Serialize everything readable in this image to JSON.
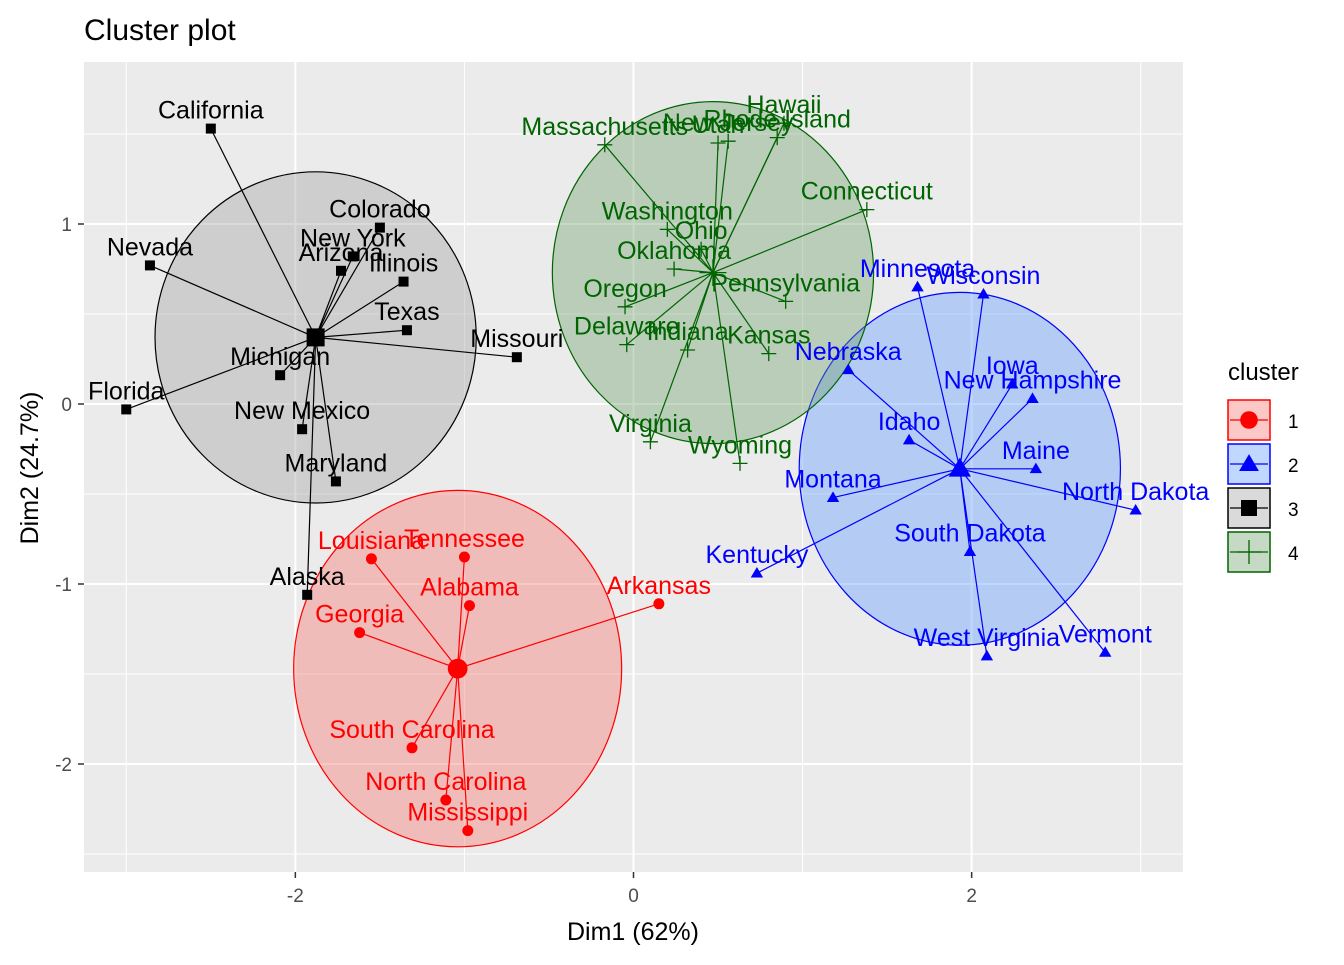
{
  "chart_data": {
    "type": "scatter",
    "title": "Cluster plot",
    "xlabel": "Dim1 (62%)",
    "ylabel": "Dim2 (24.7%)",
    "xlim": [
      -3.25,
      3.25
    ],
    "ylim": [
      -2.6,
      1.9
    ],
    "x_ticks": [
      -2,
      0,
      2
    ],
    "y_ticks": [
      1,
      0,
      -1,
      -2
    ],
    "grid": true,
    "legend_title": "cluster",
    "legend_position": "right",
    "clusters": [
      {
        "name": "1",
        "color": "#ff0000",
        "fill": "#f8766d",
        "marker": "circle",
        "center": [
          -1.04,
          -1.47
        ],
        "ellipse": {
          "rx": 0.97,
          "ry": 0.99
        },
        "points": [
          {
            "label": "Tennessee",
            "x": -1.0,
            "y": -0.85
          },
          {
            "label": "Louisiana",
            "x": -1.55,
            "y": -0.86
          },
          {
            "label": "Alabama",
            "x": -0.97,
            "y": -1.12
          },
          {
            "label": "Arkansas",
            "x": 0.15,
            "y": -1.11
          },
          {
            "label": "Georgia",
            "x": -1.62,
            "y": -1.27
          },
          {
            "label": "South Carolina",
            "x": -1.31,
            "y": -1.91
          },
          {
            "label": "North Carolina",
            "x": -1.11,
            "y": -2.2
          },
          {
            "label": "Mississippi",
            "x": -0.98,
            "y": -2.37
          }
        ]
      },
      {
        "name": "2",
        "color": "#0000ff",
        "fill": "#619cff",
        "marker": "triangle",
        "center": [
          1.93,
          -0.36
        ],
        "ellipse": {
          "rx": 0.95,
          "ry": 0.98
        },
        "points": [
          {
            "label": "Minnesota",
            "x": 1.68,
            "y": 0.65
          },
          {
            "label": "Wisconsin",
            "x": 2.07,
            "y": 0.61
          },
          {
            "label": "Iowa",
            "x": 2.24,
            "y": 0.11
          },
          {
            "label": "New Hampshire",
            "x": 2.36,
            "y": 0.03
          },
          {
            "label": "Nebraska",
            "x": 1.27,
            "y": 0.19
          },
          {
            "label": "Maine",
            "x": 2.38,
            "y": -0.36
          },
          {
            "label": "Idaho",
            "x": 1.63,
            "y": -0.2
          },
          {
            "label": "North Dakota",
            "x": 2.97,
            "y": -0.59
          },
          {
            "label": "Montana",
            "x": 1.18,
            "y": -0.52
          },
          {
            "label": "South Dakota",
            "x": 1.99,
            "y": -0.82
          },
          {
            "label": "Kentucky",
            "x": 0.73,
            "y": -0.94
          },
          {
            "label": "Vermont",
            "x": 2.79,
            "y": -1.38
          },
          {
            "label": "West Virginia",
            "x": 2.09,
            "y": -1.4
          }
        ]
      },
      {
        "name": "3",
        "color": "#000000",
        "fill": "#a3a3a3",
        "marker": "square",
        "center": [
          -1.88,
          0.37
        ],
        "ellipse": {
          "rx": 0.95,
          "ry": 0.92
        },
        "points": [
          {
            "label": "California",
            "x": -2.5,
            "y": 1.53
          },
          {
            "label": "Colorado",
            "x": -1.5,
            "y": 0.98
          },
          {
            "label": "Nevada",
            "x": -2.86,
            "y": 0.77
          },
          {
            "label": "New York",
            "x": -1.66,
            "y": 0.82
          },
          {
            "label": "Arizona",
            "x": -1.73,
            "y": 0.74
          },
          {
            "label": "Illinois",
            "x": -1.36,
            "y": 0.68
          },
          {
            "label": "Texas",
            "x": -1.34,
            "y": 0.41
          },
          {
            "label": "Missouri",
            "x": -0.69,
            "y": 0.26
          },
          {
            "label": "Michigan",
            "x": -2.09,
            "y": 0.16
          },
          {
            "label": "Florida",
            "x": -3.0,
            "y": -0.03
          },
          {
            "label": "New Mexico",
            "x": -1.96,
            "y": -0.14
          },
          {
            "label": "Maryland",
            "x": -1.76,
            "y": -0.43
          },
          {
            "label": "Alaska",
            "x": -1.93,
            "y": -1.06
          }
        ]
      },
      {
        "name": "4",
        "color": "#006400",
        "fill": "#6fa06f",
        "marker": "plus",
        "center": [
          0.47,
          0.73
        ],
        "ellipse": {
          "rx": 0.95,
          "ry": 0.95
        },
        "points": [
          {
            "label": "Hawaii",
            "x": 0.89,
            "y": 1.56
          },
          {
            "label": "Rhode Island",
            "x": 0.85,
            "y": 1.48
          },
          {
            "label": "Massachusetts",
            "x": -0.17,
            "y": 1.44
          },
          {
            "label": "Utah",
            "x": 0.5,
            "y": 1.45
          },
          {
            "label": "Connecticut",
            "x": 1.38,
            "y": 1.08
          },
          {
            "label": "New Jersey",
            "x": 0.56,
            "y": 1.46
          },
          {
            "label": "Washington",
            "x": 0.2,
            "y": 0.97
          },
          {
            "label": "Ohio",
            "x": 0.4,
            "y": 0.86
          },
          {
            "label": "Pennsylvania",
            "x": 0.9,
            "y": 0.57
          },
          {
            "label": "Oregon",
            "x": -0.05,
            "y": 0.54
          },
          {
            "label": "Oklahoma",
            "x": 0.24,
            "y": 0.75
          },
          {
            "label": "Kansas",
            "x": 0.8,
            "y": 0.28
          },
          {
            "label": "Delaware",
            "x": -0.04,
            "y": 0.33
          },
          {
            "label": "Indiana",
            "x": 0.32,
            "y": 0.3
          },
          {
            "label": "Virginia",
            "x": 0.1,
            "y": -0.21
          },
          {
            "label": "Wyoming",
            "x": 0.63,
            "y": -0.33
          }
        ]
      }
    ]
  }
}
